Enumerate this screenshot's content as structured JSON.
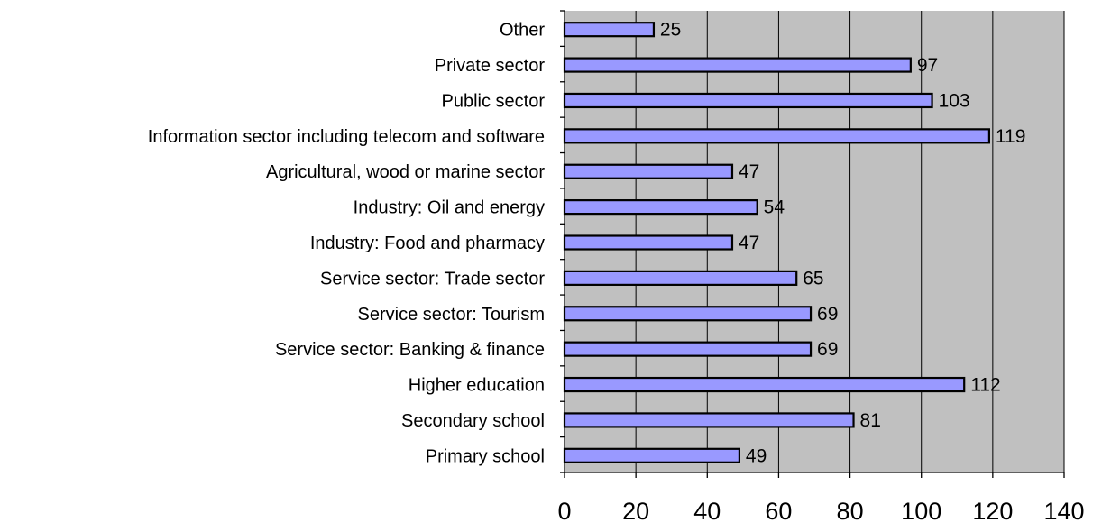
{
  "chart_data": {
    "type": "bar",
    "orientation": "horizontal",
    "title": "",
    "xlabel": "",
    "ylabel": "",
    "categories": [
      "Other",
      "Private sector",
      "Public sector",
      "Information sector including telecom and software",
      "Agricultural, wood or marine sector",
      "Industry: Oil and energy",
      "Industry: Food and pharmacy",
      "Service sector: Trade sector",
      "Service sector: Tourism",
      "Service sector: Banking & finance",
      "Higher education",
      "Secondary school",
      "Primary school"
    ],
    "values": [
      25,
      97,
      103,
      119,
      47,
      54,
      47,
      65,
      69,
      69,
      112,
      81,
      49
    ],
    "xlim": [
      0,
      140
    ],
    "xticks": [
      0,
      20,
      40,
      60,
      80,
      100,
      120,
      140
    ],
    "grid": true,
    "legend": "none",
    "colors": {
      "bar_fill": "#9999ff",
      "bar_stroke": "#000000",
      "plot_background": "#c0c0c0",
      "gridline": "#000000"
    }
  }
}
